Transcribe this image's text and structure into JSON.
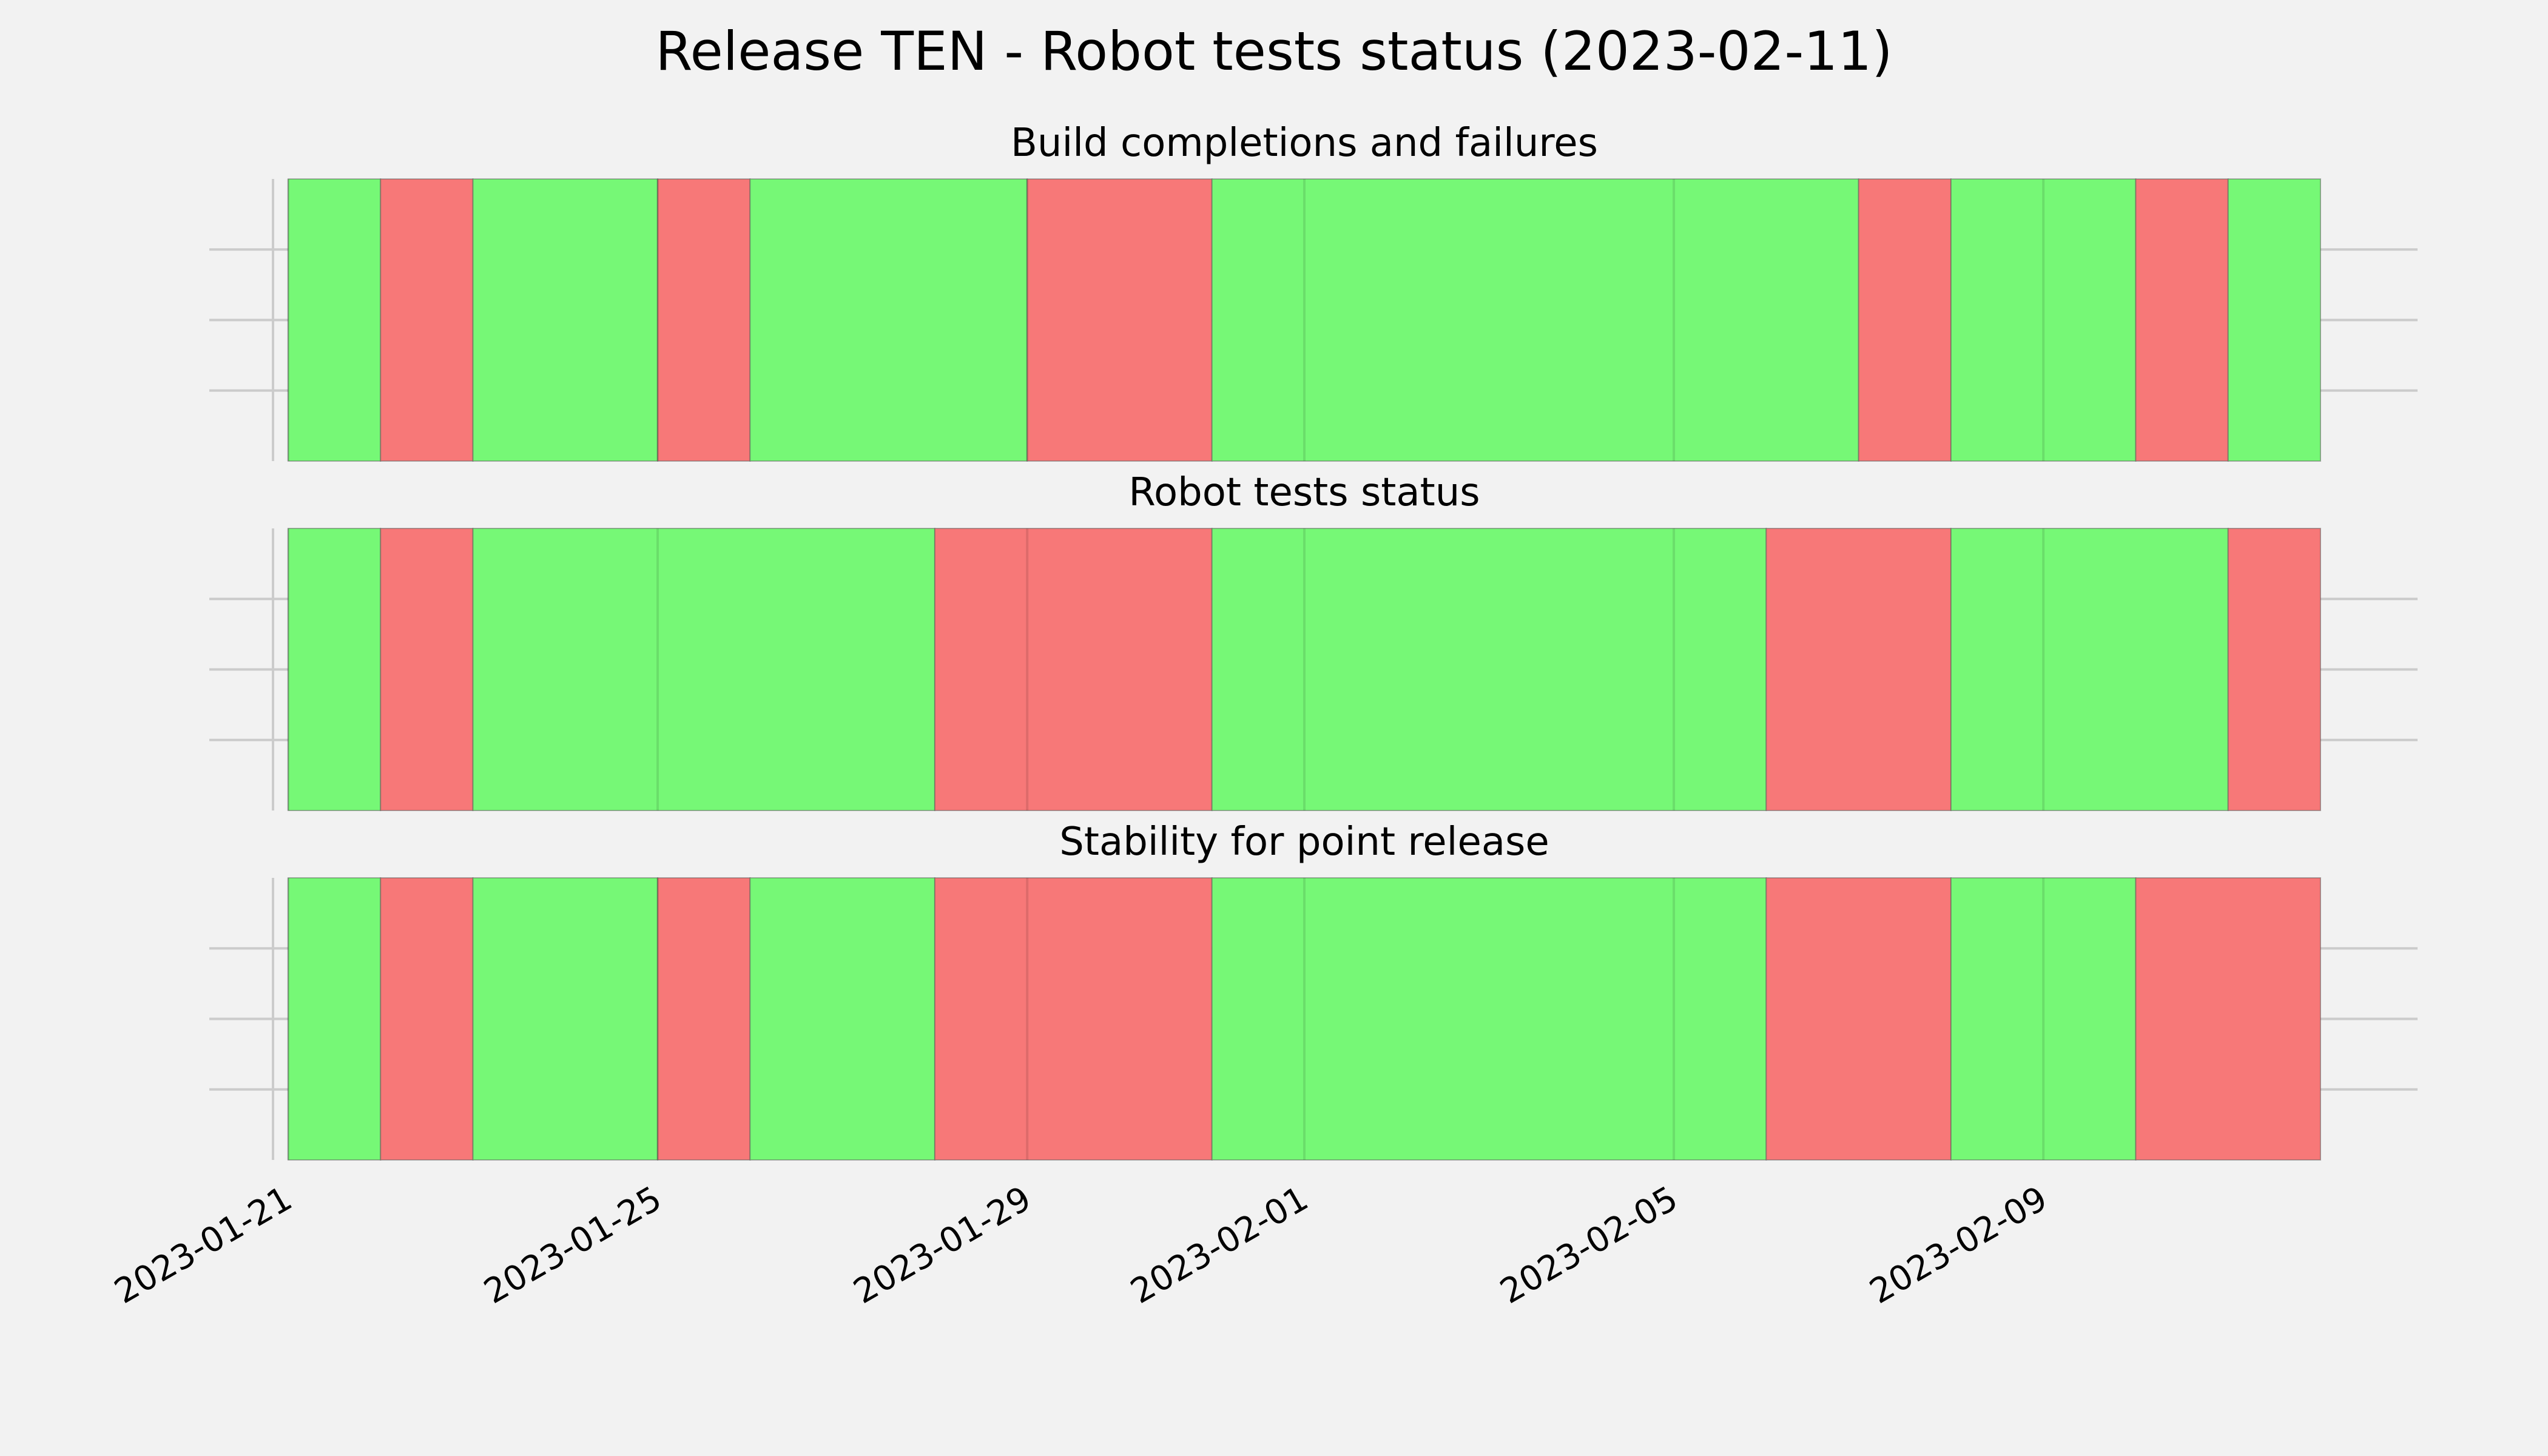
{
  "title": "Release TEN - Robot tests status (2023-02-11)",
  "colors": {
    "pass": "#76f876",
    "fail": "#f77878",
    "background": "#f2f2f2"
  },
  "chart_data": {
    "type": "timeline",
    "x_axis": {
      "type": "date",
      "range": [
        "2023-01-21",
        "2023-02-12"
      ],
      "ticks": [
        "2023-01-21",
        "2023-01-25",
        "2023-01-29",
        "2023-02-01",
        "2023-02-05",
        "2023-02-09"
      ]
    },
    "grid": true,
    "legend": "none",
    "panels": [
      {
        "title": "Build completions and failures",
        "segments": [
          {
            "start": "2023-01-21",
            "end": "2023-01-22",
            "status": "pass"
          },
          {
            "start": "2023-01-22",
            "end": "2023-01-23",
            "status": "fail"
          },
          {
            "start": "2023-01-23",
            "end": "2023-01-25",
            "status": "pass"
          },
          {
            "start": "2023-01-25",
            "end": "2023-01-26",
            "status": "fail"
          },
          {
            "start": "2023-01-26",
            "end": "2023-01-29",
            "status": "pass"
          },
          {
            "start": "2023-01-29",
            "end": "2023-01-31",
            "status": "fail"
          },
          {
            "start": "2023-01-31",
            "end": "2023-02-07",
            "status": "pass"
          },
          {
            "start": "2023-02-07",
            "end": "2023-02-08",
            "status": "fail"
          },
          {
            "start": "2023-02-08",
            "end": "2023-02-10",
            "status": "pass"
          },
          {
            "start": "2023-02-10",
            "end": "2023-02-11",
            "status": "fail"
          },
          {
            "start": "2023-02-11",
            "end": "2023-02-12",
            "status": "pass"
          }
        ]
      },
      {
        "title": "Robot tests status",
        "segments": [
          {
            "start": "2023-01-21",
            "end": "2023-01-22",
            "status": "pass"
          },
          {
            "start": "2023-01-22",
            "end": "2023-01-23",
            "status": "fail"
          },
          {
            "start": "2023-01-23",
            "end": "2023-01-28",
            "status": "pass"
          },
          {
            "start": "2023-01-28",
            "end": "2023-01-31",
            "status": "fail"
          },
          {
            "start": "2023-01-31",
            "end": "2023-02-06",
            "status": "pass"
          },
          {
            "start": "2023-02-06",
            "end": "2023-02-08",
            "status": "fail"
          },
          {
            "start": "2023-02-08",
            "end": "2023-02-11",
            "status": "pass"
          },
          {
            "start": "2023-02-11",
            "end": "2023-02-12",
            "status": "fail"
          }
        ]
      },
      {
        "title": "Stability for point release",
        "segments": [
          {
            "start": "2023-01-21",
            "end": "2023-01-22",
            "status": "pass"
          },
          {
            "start": "2023-01-22",
            "end": "2023-01-23",
            "status": "fail"
          },
          {
            "start": "2023-01-23",
            "end": "2023-01-25",
            "status": "pass"
          },
          {
            "start": "2023-01-25",
            "end": "2023-01-26",
            "status": "fail"
          },
          {
            "start": "2023-01-26",
            "end": "2023-01-28",
            "status": "pass"
          },
          {
            "start": "2023-01-28",
            "end": "2023-01-31",
            "status": "fail"
          },
          {
            "start": "2023-01-31",
            "end": "2023-02-06",
            "status": "pass"
          },
          {
            "start": "2023-02-06",
            "end": "2023-02-08",
            "status": "fail"
          },
          {
            "start": "2023-02-08",
            "end": "2023-02-10",
            "status": "pass"
          },
          {
            "start": "2023-02-10",
            "end": "2023-02-12",
            "status": "fail"
          }
        ]
      }
    ]
  }
}
